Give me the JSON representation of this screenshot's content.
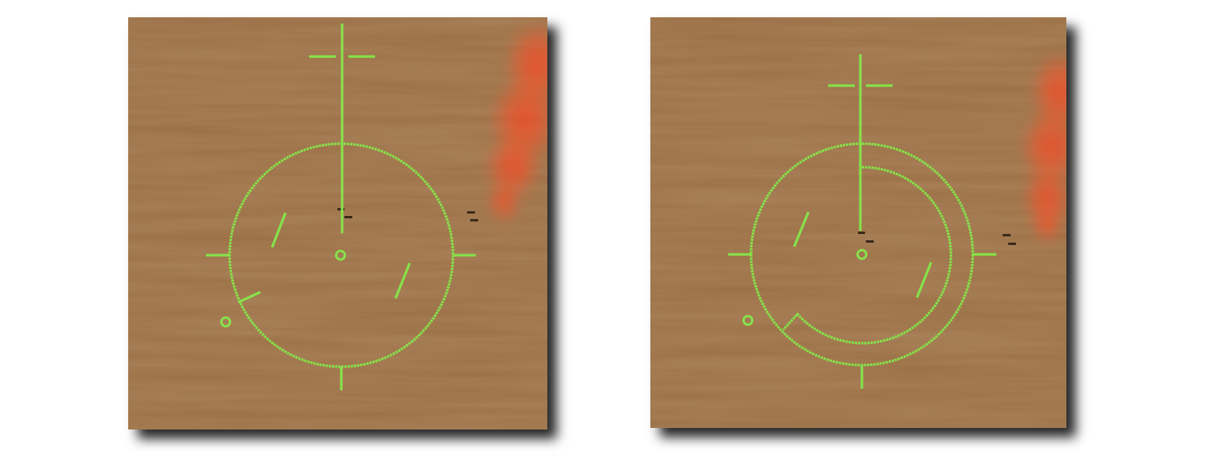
{
  "scene": {
    "panels": [
      {
        "id": "left",
        "secondary_arc": false
      },
      {
        "id": "right",
        "secondary_arc": true
      }
    ],
    "terrain": "desert-sand",
    "smoke": "red-smoke-plume",
    "ground_vehicles": 2
  },
  "colors": {
    "reticle": "#86e24a",
    "sand": "#9b6f45",
    "smoke": "#ec4a26",
    "shadow": "#000000"
  },
  "icons": [
    "crosshair-icon",
    "reticle-ring-icon",
    "center-marker-icon",
    "waypoint-marker-icon",
    "vehicle-icon"
  ]
}
